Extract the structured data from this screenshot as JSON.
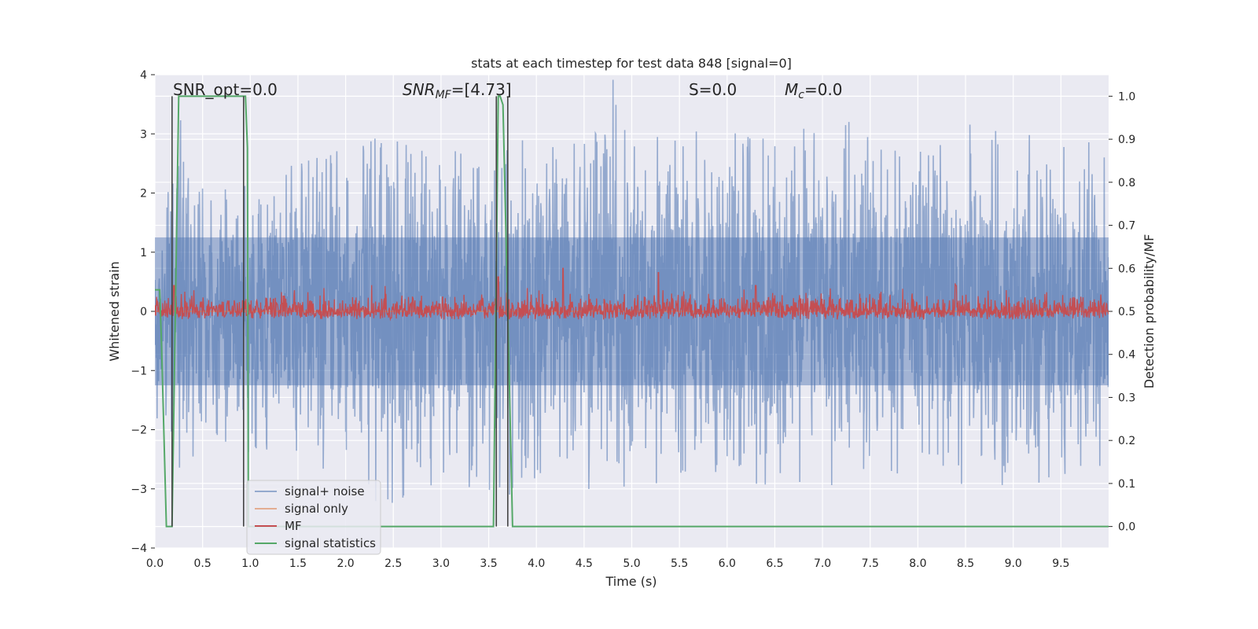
{
  "chart_data": {
    "type": "line",
    "title": "stats at each timestep for test data 848 [signal=0]",
    "xlabel": "Time (s)",
    "ylabel": "Whitened strain",
    "y2label": "Detection probability/MF",
    "xlim": [
      0.0,
      10.0
    ],
    "ylim": [
      -4.0,
      4.0
    ],
    "y2lim": [
      -0.05,
      1.05
    ],
    "x_ticks": [
      "0.0",
      "0.5",
      "1.0",
      "1.5",
      "2.0",
      "2.5",
      "3.0",
      "3.5",
      "4.0",
      "4.5",
      "5.0",
      "5.5",
      "6.0",
      "6.5",
      "7.0",
      "7.5",
      "8.0",
      "8.5",
      "9.0",
      "9.5"
    ],
    "y_ticks": [
      "4",
      "3",
      "2",
      "1",
      "0",
      "−1",
      "−2",
      "−3",
      "−4"
    ],
    "y2_ticks": [
      "1.0",
      "0.9",
      "0.8",
      "0.7",
      "0.6",
      "0.5",
      "0.4",
      "0.3",
      "0.2",
      "0.1",
      "0.0"
    ],
    "grid": true,
    "legend_position": "lower-left",
    "annotations": {
      "snr_opt": "SNR_opt=0.0",
      "snr_mf_prefix": "SNR",
      "snr_mf_sub": "MF",
      "snr_mf_value": "=[4.73]",
      "s": "S=0.0",
      "mc_prefix": "M",
      "mc_sub": "c",
      "mc_value": "=0.0"
    },
    "series": [
      {
        "name": "signal+ noise",
        "color": "#4c72b0",
        "axis": "left",
        "description_values": "whitened noise time series, approximately Gaussian, range about -3.6 to 4.0",
        "envelope_upper": [
          [
            0.0,
            1.9
          ],
          [
            0.15,
            2.4
          ],
          [
            0.3,
            3.5
          ],
          [
            0.5,
            2.3
          ],
          [
            1.0,
            2.1
          ],
          [
            1.5,
            2.6
          ],
          [
            2.0,
            2.8
          ],
          [
            2.5,
            3.2
          ],
          [
            3.0,
            2.7
          ],
          [
            3.5,
            3.0
          ],
          [
            4.0,
            2.9
          ],
          [
            4.5,
            3.1
          ],
          [
            4.83,
            4.0
          ],
          [
            5.0,
            2.9
          ],
          [
            5.5,
            3.1
          ],
          [
            6.0,
            3.2
          ],
          [
            6.5,
            2.9
          ],
          [
            7.0,
            3.3
          ],
          [
            7.5,
            3.2
          ],
          [
            8.0,
            2.8
          ],
          [
            8.5,
            3.2
          ],
          [
            9.0,
            3.1
          ],
          [
            9.5,
            3.0
          ],
          [
            10.0,
            2.9
          ]
        ],
        "envelope_lower": [
          [
            0.0,
            -1.9
          ],
          [
            0.15,
            -2.5
          ],
          [
            0.3,
            -2.9
          ],
          [
            0.5,
            -2.2
          ],
          [
            1.0,
            -2.4
          ],
          [
            1.5,
            -2.5
          ],
          [
            2.0,
            -2.9
          ],
          [
            2.5,
            -3.5
          ],
          [
            3.0,
            -2.8
          ],
          [
            3.5,
            -3.1
          ],
          [
            4.0,
            -3.3
          ],
          [
            4.3,
            -3.4
          ],
          [
            4.5,
            -3.1
          ],
          [
            5.0,
            -3.0
          ],
          [
            5.5,
            -3.0
          ],
          [
            6.0,
            -3.1
          ],
          [
            6.27,
            -3.6
          ],
          [
            6.5,
            -2.8
          ],
          [
            7.0,
            -3.0
          ],
          [
            7.5,
            -3.0
          ],
          [
            8.0,
            -2.9
          ],
          [
            8.5,
            -3.2
          ],
          [
            9.0,
            -3.3
          ],
          [
            9.5,
            -3.3
          ],
          [
            10.0,
            -2.8
          ]
        ]
      },
      {
        "name": "signal only",
        "color": "#dd8452",
        "axis": "left",
        "x": [
          0.0,
          10.0
        ],
        "y": [
          0.0,
          0.0
        ]
      },
      {
        "name": "MF",
        "color": "#c44e52",
        "axis": "right",
        "base": 0.5,
        "spikes": [
          [
            4.28,
            0.6
          ],
          [
            5.28,
            0.59
          ],
          [
            3.6,
            0.58
          ],
          [
            0.2,
            0.56
          ],
          [
            6.3,
            0.56
          ],
          [
            8.4,
            0.56
          ]
        ],
        "range": [
          0.48,
          0.6
        ]
      },
      {
        "name": "signal statistics",
        "color": "#55a868",
        "axis": "right",
        "x": [
          0.0,
          0.05,
          0.07,
          0.12,
          0.18,
          0.25,
          0.95,
          0.97,
          0.98,
          1.0,
          3.55,
          3.6,
          3.62,
          3.65,
          3.7,
          3.75,
          10.0
        ],
        "y": [
          0.55,
          0.55,
          0.42,
          0.0,
          0.0,
          1.0,
          1.0,
          0.88,
          0.0,
          0.0,
          0.0,
          1.0,
          1.0,
          0.98,
          0.5,
          0.0,
          0.0
        ]
      }
    ],
    "vertical_markers": {
      "color": "#444444",
      "x": [
        0.18,
        0.93,
        3.58,
        3.7
      ]
    }
  }
}
